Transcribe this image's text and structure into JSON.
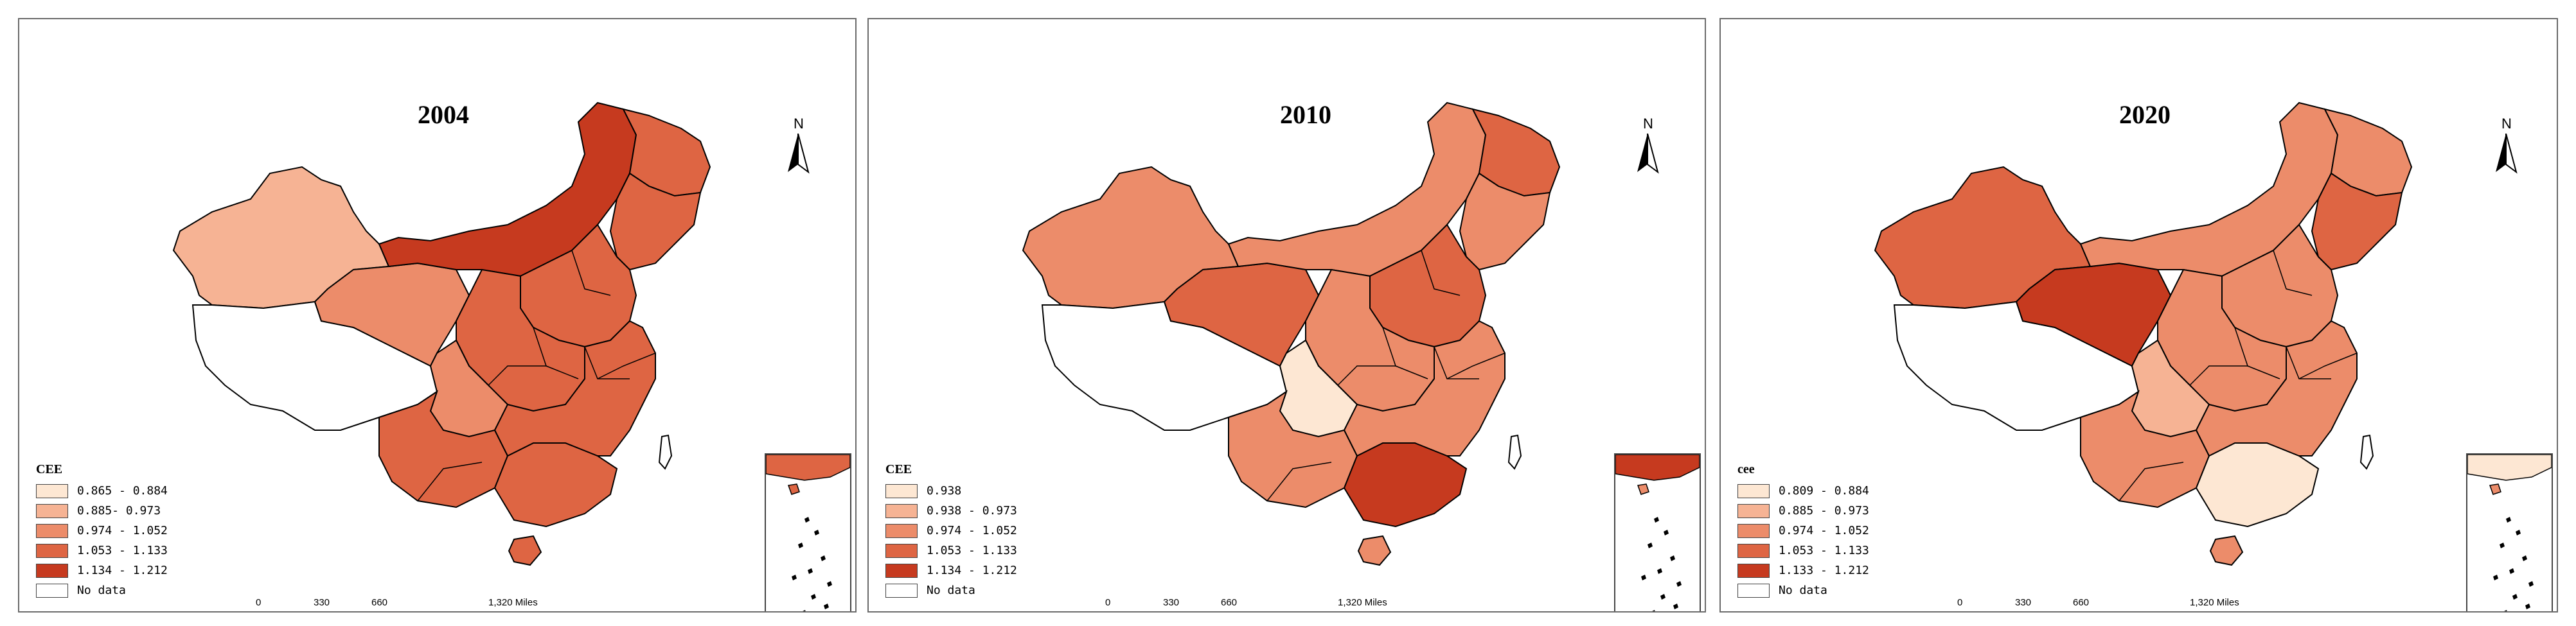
{
  "panels": [
    {
      "year": "2004",
      "legend_title": "CEE",
      "legend": [
        {
          "label": "0.865 - 0.884",
          "color": "#fde7d3"
        },
        {
          "label": "0.885- 0.973",
          "color": "#f6b394"
        },
        {
          "label": "0.974 - 1.052",
          "color": "#ec8c6a"
        },
        {
          "label": "1.053 - 1.133",
          "color": "#de6543"
        },
        {
          "label": "1.134 - 1.212",
          "color": "#c63a1f"
        },
        {
          "label": "No data",
          "color": "#ffffff"
        }
      ],
      "regions": {
        "xinjiang": "#f6b394",
        "tibet": "#ffffff",
        "qinghai": "#ec8c6a",
        "inner_mongolia": "#c63a1f",
        "heilongjiang": "#de6543",
        "northeast": "#de6543",
        "north": "#de6543",
        "central": "#de6543",
        "sichuan": "#ec8c6a",
        "southwest": "#de6543",
        "south": "#de6543",
        "east": "#de6543",
        "hainan": "#de6543",
        "taiwan": "#ffffff"
      }
    },
    {
      "year": "2010",
      "legend_title": "CEE",
      "legend": [
        {
          "label": "0.938",
          "color": "#fde7d3"
        },
        {
          "label": "0.938 - 0.973",
          "color": "#f6b394"
        },
        {
          "label": "0.974 - 1.052",
          "color": "#ec8c6a"
        },
        {
          "label": "1.053 - 1.133",
          "color": "#de6543"
        },
        {
          "label": "1.134 - 1.212",
          "color": "#c63a1f"
        },
        {
          "label": "No data",
          "color": "#ffffff"
        }
      ],
      "regions": {
        "xinjiang": "#ec8c6a",
        "tibet": "#ffffff",
        "qinghai": "#de6543",
        "inner_mongolia": "#ec8c6a",
        "heilongjiang": "#de6543",
        "northeast": "#ec8c6a",
        "north": "#de6543",
        "central": "#ec8c6a",
        "sichuan": "#fde7d3",
        "southwest": "#ec8c6a",
        "south": "#c63a1f",
        "east": "#ec8c6a",
        "hainan": "#ec8c6a",
        "taiwan": "#ffffff"
      }
    },
    {
      "year": "2020",
      "legend_title": "cee",
      "legend": [
        {
          "label": "0.809 - 0.884",
          "color": "#fde7d3"
        },
        {
          "label": "0.885 - 0.973",
          "color": "#f6b394"
        },
        {
          "label": "0.974 - 1.052",
          "color": "#ec8c6a"
        },
        {
          "label": "1.053 - 1.133",
          "color": "#de6543"
        },
        {
          "label": "1.133 - 1.212",
          "color": "#c63a1f"
        },
        {
          "label": "No data",
          "color": "#ffffff"
        }
      ],
      "regions": {
        "xinjiang": "#de6543",
        "tibet": "#ffffff",
        "qinghai": "#c63a1f",
        "inner_mongolia": "#ec8c6a",
        "heilongjiang": "#ec8c6a",
        "northeast": "#de6543",
        "north": "#ec8c6a",
        "central": "#ec8c6a",
        "sichuan": "#f6b394",
        "southwest": "#ec8c6a",
        "south": "#fde7d3",
        "east": "#ec8c6a",
        "hainan": "#ec8c6a",
        "taiwan": "#ffffff"
      }
    }
  ],
  "scale": {
    "t0": "0",
    "t1": "330",
    "t2": "660",
    "t3": "1,320 Miles"
  },
  "north_label": "N"
}
